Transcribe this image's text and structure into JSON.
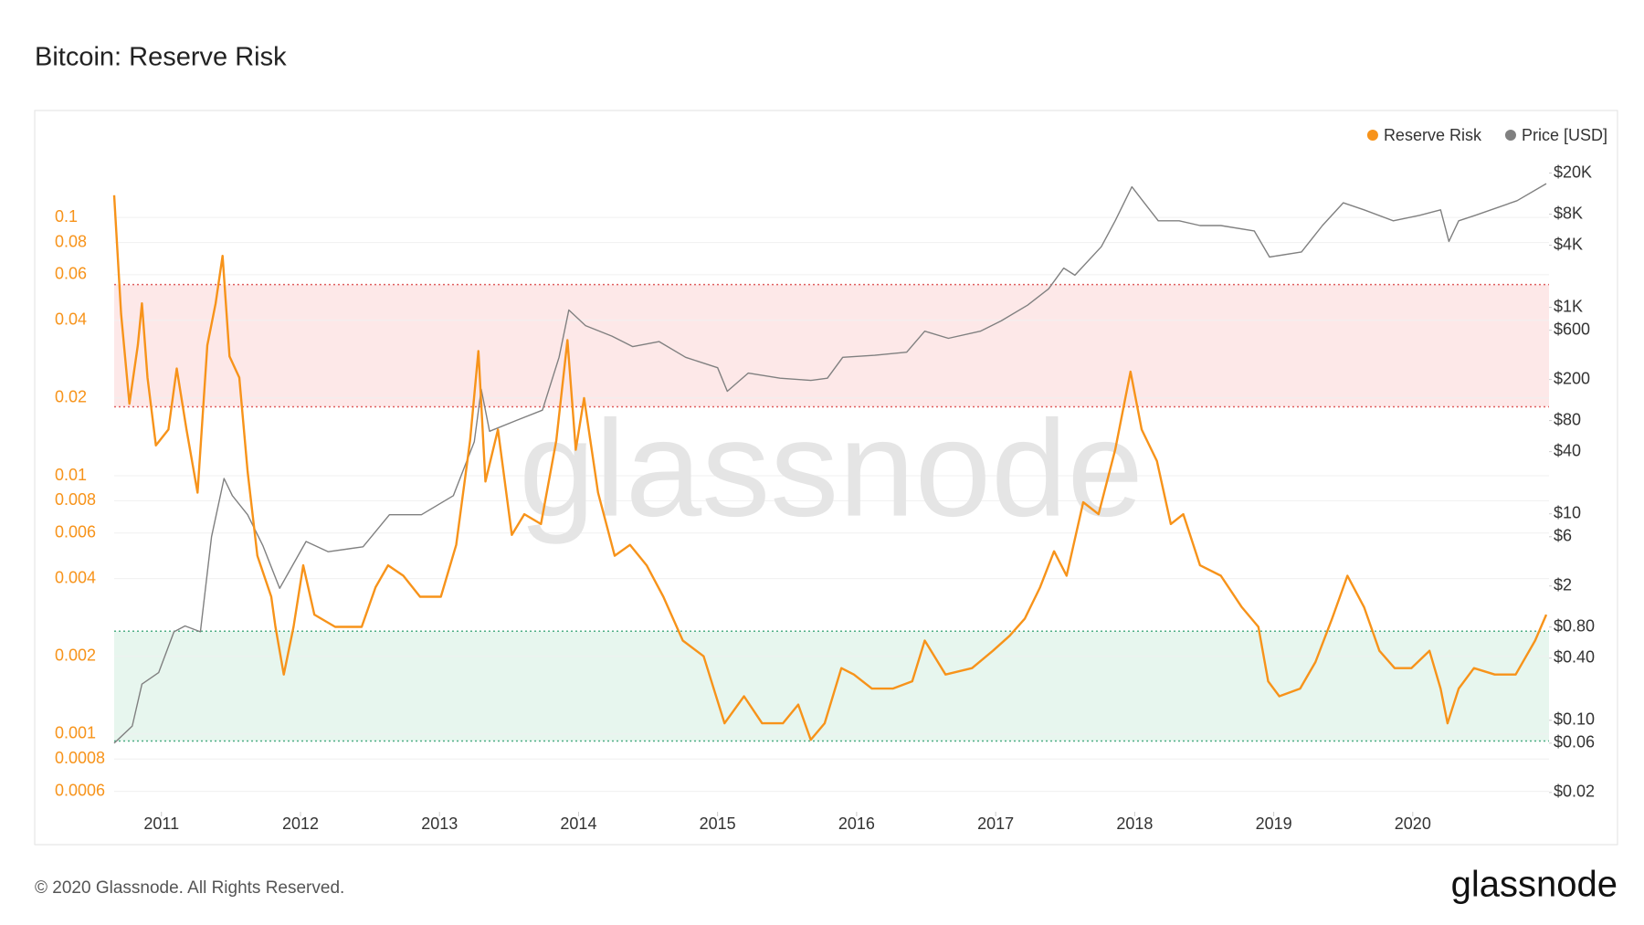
{
  "chart_data": {
    "type": "line",
    "title": "Bitcoin: Reserve Risk",
    "watermark": "glassnode",
    "footer": "© 2020 Glassnode. All Rights Reserved.",
    "logo": "glassnode",
    "log_scale": true,
    "grid": true,
    "legend": "top-right",
    "xlim": [
      2010.66,
      2020.98
    ],
    "xticks": [
      2011,
      2012,
      2013,
      2014,
      2015,
      2016,
      2017,
      2018,
      2019,
      2020
    ],
    "ylim": [
      0.0005,
      0.17
    ],
    "yticks": [
      0.0006,
      0.0008,
      0.001,
      0.002,
      0.004,
      0.006,
      0.008,
      0.01,
      0.02,
      0.04,
      0.06,
      0.08,
      0.1
    ],
    "y2lim": [
      0.013,
      28000
    ],
    "y2ticks": [
      {
        "value": 20000,
        "label": "$20K"
      },
      {
        "value": 8000,
        "label": "$8K"
      },
      {
        "value": 4000,
        "label": "$4K"
      },
      {
        "value": 1000,
        "label": "$1K"
      },
      {
        "value": 600,
        "label": "$600"
      },
      {
        "value": 200,
        "label": "$200"
      },
      {
        "value": 80,
        "label": "$80"
      },
      {
        "value": 40,
        "label": "$40"
      },
      {
        "value": 10,
        "label": "$10"
      },
      {
        "value": 6,
        "label": "$6"
      },
      {
        "value": 2,
        "label": "$2"
      },
      {
        "value": 0.8,
        "label": "$0.80"
      },
      {
        "value": 0.4,
        "label": "$0.40"
      },
      {
        "value": 0.1,
        "label": "$0.10"
      },
      {
        "value": 0.06,
        "label": "$0.06"
      },
      {
        "value": 0.02,
        "label": "$0.02"
      }
    ],
    "zones": [
      {
        "values": [
          0.0185,
          0.055
        ],
        "color": "#fde8e8",
        "line_color": "#e06060"
      },
      {
        "values": [
          0.00094,
          0.0025
        ],
        "color": "#e7f6ee",
        "line_color": "#4fae86"
      }
    ],
    "series": [
      {
        "name": "Reserve Risk",
        "color": "#f7931a",
        "x": [
          2010.66,
          2010.71,
          2010.77,
          2010.83,
          2010.86,
          2010.9,
          2010.96,
          2011.05,
          2011.11,
          2011.18,
          2011.26,
          2011.33,
          2011.39,
          2011.44,
          2011.49,
          2011.56,
          2011.62,
          2011.69,
          2011.79,
          2011.82,
          2011.88,
          2011.95,
          2012.02,
          2012.1,
          2012.25,
          2012.44,
          2012.54,
          2012.63,
          2012.74,
          2012.86,
          2013.01,
          2013.12,
          2013.22,
          2013.28,
          2013.33,
          2013.42,
          2013.52,
          2013.61,
          2013.73,
          2013.84,
          2013.92,
          2013.98,
          2014.04,
          2014.14,
          2014.26,
          2014.37,
          2014.49,
          2014.61,
          2014.75,
          2014.9,
          2015.05,
          2015.19,
          2015.32,
          2015.47,
          2015.58,
          2015.67,
          2015.77,
          2015.89,
          2015.98,
          2016.11,
          2016.26,
          2016.4,
          2016.49,
          2016.64,
          2016.83,
          2016.98,
          2017.1,
          2017.21,
          2017.32,
          2017.42,
          2017.51,
          2017.63,
          2017.74,
          2017.86,
          2017.97,
          2018.05,
          2018.16,
          2018.26,
          2018.35,
          2018.47,
          2018.62,
          2018.77,
          2018.89,
          2018.96,
          2019.04,
          2019.19,
          2019.3,
          2019.42,
          2019.53,
          2019.65,
          2019.76,
          2019.87,
          2019.99,
          2020.12,
          2020.2,
          2020.25,
          2020.33,
          2020.44,
          2020.59,
          2020.74,
          2020.88,
          2020.96
        ],
        "values": [
          0.122,
          0.0423,
          0.019,
          0.032,
          0.0465,
          0.024,
          0.0131,
          0.0151,
          0.026,
          0.0151,
          0.0086,
          0.032,
          0.0465,
          0.071,
          0.029,
          0.024,
          0.0104,
          0.0049,
          0.0034,
          0.0026,
          0.0017,
          0.0026,
          0.0045,
          0.0029,
          0.0026,
          0.0026,
          0.0037,
          0.0045,
          0.0041,
          0.0034,
          0.0034,
          0.0054,
          0.0137,
          0.0304,
          0.0095,
          0.0151,
          0.0059,
          0.0071,
          0.0065,
          0.0137,
          0.0335,
          0.0126,
          0.02,
          0.0086,
          0.0049,
          0.0054,
          0.0045,
          0.0034,
          0.0023,
          0.002,
          0.0011,
          0.0014,
          0.0011,
          0.0011,
          0.0013,
          0.00095,
          0.0011,
          0.0018,
          0.0017,
          0.0015,
          0.0015,
          0.0016,
          0.0023,
          0.0017,
          0.0018,
          0.0021,
          0.0024,
          0.0028,
          0.0037,
          0.0051,
          0.0041,
          0.0079,
          0.0071,
          0.0126,
          0.0253,
          0.0151,
          0.0114,
          0.0065,
          0.0071,
          0.0045,
          0.0041,
          0.0031,
          0.0026,
          0.0016,
          0.0014,
          0.0015,
          0.0019,
          0.0028,
          0.0041,
          0.0031,
          0.0021,
          0.0018,
          0.0018,
          0.0021,
          0.0015,
          0.0011,
          0.0015,
          0.0018,
          0.0017,
          0.0017,
          0.0023,
          0.0029
        ]
      },
      {
        "name": "Price [USD]",
        "color": "#808080",
        "axis": "y2",
        "x": [
          2010.66,
          2010.79,
          2010.86,
          2010.98,
          2011.09,
          2011.17,
          2011.28,
          2011.36,
          2011.45,
          2011.51,
          2011.62,
          2011.73,
          2011.85,
          2012.04,
          2012.2,
          2012.45,
          2012.64,
          2012.87,
          2013.1,
          2013.25,
          2013.3,
          2013.36,
          2013.55,
          2013.74,
          2013.86,
          2013.93,
          2014.05,
          2014.24,
          2014.39,
          2014.58,
          2014.77,
          2015.0,
          2015.07,
          2015.22,
          2015.45,
          2015.67,
          2015.79,
          2015.9,
          2016.13,
          2016.36,
          2016.49,
          2016.66,
          2016.89,
          2017.04,
          2017.23,
          2017.38,
          2017.49,
          2017.57,
          2017.76,
          2017.86,
          2017.98,
          2018.05,
          2018.17,
          2018.32,
          2018.47,
          2018.62,
          2018.86,
          2018.97,
          2019.2,
          2019.35,
          2019.5,
          2019.65,
          2019.86,
          2020.05,
          2020.2,
          2020.26,
          2020.33,
          2020.45,
          2020.75,
          2020.96
        ],
        "values": [
          0.06,
          0.088,
          0.224,
          0.29,
          0.72,
          0.82,
          0.72,
          6,
          22,
          15,
          9.8,
          4.9,
          1.9,
          5.4,
          4.3,
          4.8,
          9.8,
          9.8,
          15,
          50,
          161,
          63,
          80,
          101,
          328,
          943,
          665,
          527,
          417,
          466,
          328,
          260,
          154,
          231,
          206,
          196,
          206,
          328,
          343,
          368,
          588,
          501,
          588,
          740,
          1050,
          1510,
          2400,
          2050,
          3870,
          6900,
          14700,
          11100,
          6900,
          6900,
          6200,
          6200,
          5500,
          3070,
          3440,
          6200,
          10300,
          8800,
          6900,
          7800,
          8800,
          4350,
          6900,
          7800,
          10800,
          15800
        ]
      }
    ]
  }
}
